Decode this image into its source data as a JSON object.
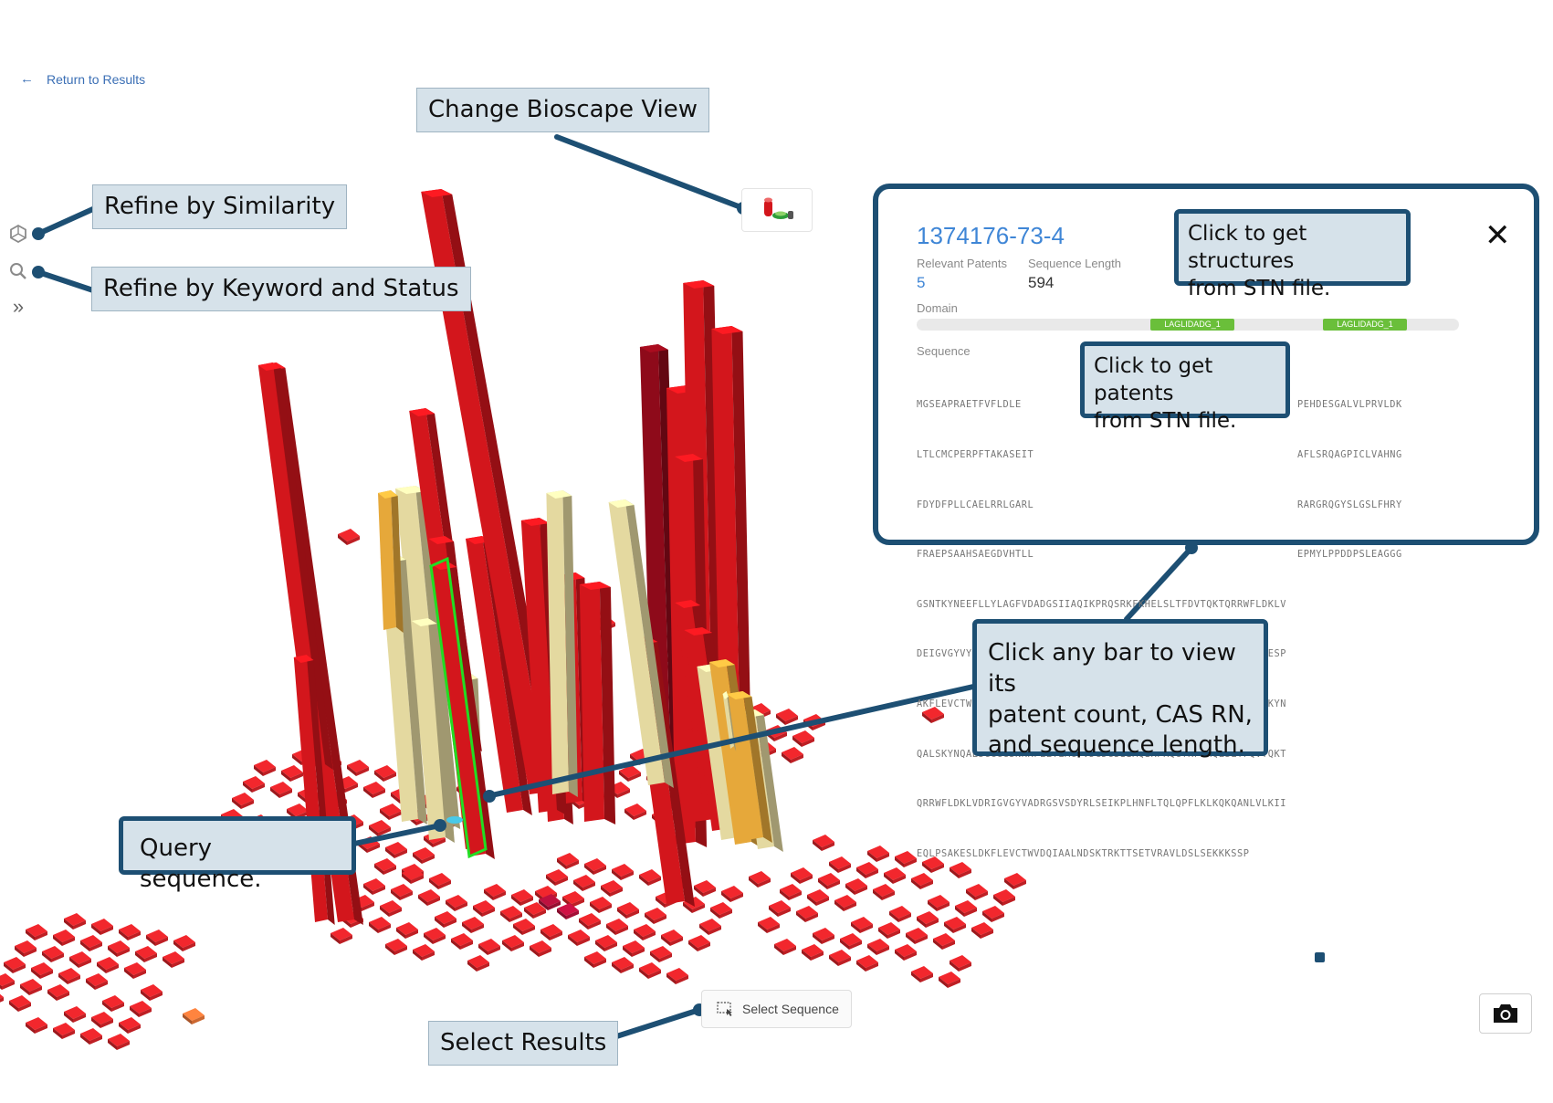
{
  "nav": {
    "back_label": "Return to Results"
  },
  "sidebar": {
    "icons": [
      "similarity-icon",
      "search-icon",
      "expand-chevron-icon"
    ]
  },
  "callouts": {
    "change_view": "Change Bioscape View",
    "refine_similarity": "Refine by Similarity",
    "refine_keyword": "Refine by Keyword and Status",
    "structures_line1": "Click to get structures",
    "structures_line2": "from STN file.",
    "patents_line1": "Click to get patents",
    "patents_line2": "from STN file.",
    "bar_line1": "Click any bar to view its",
    "bar_line2": "patent count, CAS RN,",
    "bar_line3": "and sequence length.",
    "query": "Query sequence.",
    "select": "Select Results"
  },
  "popup": {
    "cas_rn": "1374176-73-4",
    "relevant_patents_label": "Relevant Patents",
    "relevant_patents_value": "5",
    "sequence_length_label": "Sequence Length",
    "sequence_length_value": "594",
    "domain_label": "Domain",
    "domains": [
      "LAGLIDADG_1",
      "LAGLIDADG_1"
    ],
    "sequence_label": "Sequence",
    "sequence_lines": [
      "MGSEAPRAETFVFLDLE",
      "LTLCMCPERPFTAKASEIT",
      "FDYDFPLLCAELRRLGARL",
      "FRAEPSAAHSAEGDVHTLL",
      "GSNTKYNEEFLLYLAGFVDADGSIIAQIKPRQSRKFKHELSLTFDVTQKTQRRWFLDKLV",
      "DEIGVGYVYDSGSVSYYQLSEIKPLHNFLTQLQPFLELKQKQANLVLKIIEQLPSAKESP",
      "AKFLEVCTWVDQIAALNDSKTRKTTSETVRAVLDSLSEKKKSSPAAGGSDKYNQALSKYN",
      "QALSKYNQALSGGGGSNKKFLLYLAGFVDGDGSIIAQIKPRQGYKFKHQLSLTFQVTQKT",
      "QRRWFLDKLVDRIGVGYVADRGSVSDYRLSEIKPLHNFLTQLQPFLKLKQKQANLVLKII",
      "EQLPSAKESLDKFLEVCTWVDQIAALNDSKTRKTTSETVRAVLDSLSEKKKSSP"
    ],
    "sequence_right_fragments": [
      "PEHDESGALVLPRVLDK",
      "AFLSRQAGPICLVAHNG",
      "RARGRQGYSLGSLFHRY",
      "EPMYLPPDDPSLEAGGG"
    ]
  },
  "toolbar": {
    "select_sequence_label": "Select Sequence"
  },
  "colors": {
    "callout_border": "#1d4f73",
    "callout_fill": "#d6e2ea",
    "bar_red": "#d3161c",
    "bar_dark_red": "#8e0a1a",
    "bar_beige": "#e4d9a0",
    "bar_orange": "#e6a83a",
    "highlight_green": "#22dd22",
    "link_blue": "#3f86d6",
    "domain_green": "#6abf3a"
  }
}
